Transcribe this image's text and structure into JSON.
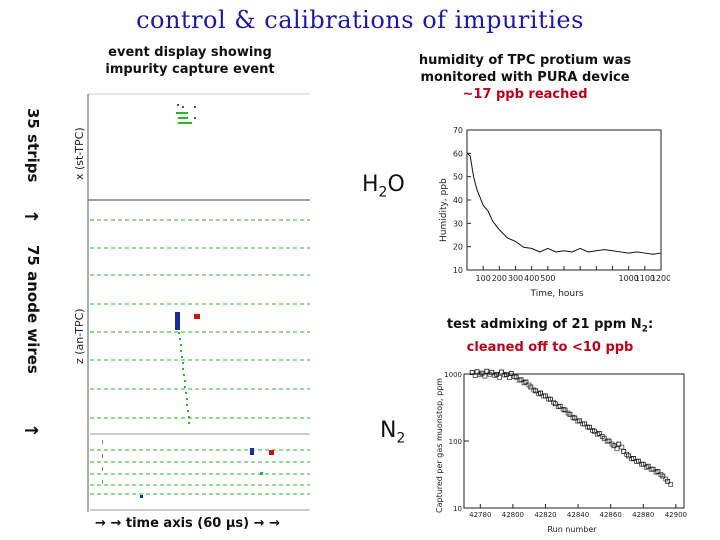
{
  "title": "control & calibrations of impurities",
  "left_panel": {
    "caption_line1": "event display showing",
    "caption_line2": "impurity capture event",
    "strips_label": "35 strips",
    "anode_label": "75 anode wires",
    "arrow_glyph": "→",
    "upper_axis_label": "x (st-TPC)",
    "lower_axis_label": "z (an-TPC)",
    "time_axis_label": "time axis (60 μs)"
  },
  "humidity_panel": {
    "caption_line1": "humidity of TPC protium was",
    "caption_line2": "monitored with PURA device",
    "caption_line3": "~17 ppb reached",
    "molecule_prefix": "H",
    "molecule_sub": "2",
    "molecule_suffix": "O",
    "chart_data": {
      "type": "line",
      "ylabel": "Humidity, ppb",
      "xlabel": "Time, hours",
      "xlim": [
        0,
        1200
      ],
      "ylim": [
        10,
        70
      ],
      "xticks": [
        "100",
        "200",
        "300",
        "400",
        "500",
        "600",
        "700",
        "800",
        "900",
        "1000",
        "1100",
        "1200"
      ],
      "xticks_shown": [
        "100",
        "200",
        "300",
        "400",
        "500",
        "1000",
        "1100",
        "1200"
      ],
      "yticks": [
        "10",
        "20",
        "30",
        "40",
        "50",
        "60",
        "70"
      ],
      "series": [
        {
          "x": [
            0,
            20,
            40,
            60,
            80,
            100,
            130,
            160,
            200,
            250,
            300,
            350,
            400,
            450,
            500,
            550,
            600,
            650,
            700,
            750,
            800,
            850,
            900,
            950,
            1000,
            1050,
            1100,
            1150,
            1200
          ],
          "y": [
            60,
            59,
            50,
            45,
            41,
            38,
            35,
            31,
            27,
            24,
            22,
            20,
            19,
            18,
            19,
            18,
            18,
            18,
            19,
            18,
            18,
            19,
            18,
            18,
            17,
            18,
            17,
            17,
            17
          ]
        }
      ]
    }
  },
  "n2_panel": {
    "caption_line1_pre": "test admixing of 21 ppm N",
    "caption_line1_sub": "2",
    "caption_line1_post": ":",
    "caption_line2": "cleaned off to <10 ppb",
    "molecule_prefix": "N",
    "molecule_sub": "2",
    "chart_data": {
      "type": "scatter",
      "ylabel": "Captured per gas muonstop, ppm",
      "xlabel": "Run number",
      "log_y": true,
      "ylim": [
        10,
        1000
      ],
      "yticks": [
        "10",
        "100",
        "1000"
      ],
      "xticks": [
        "42780",
        "42800",
        "42820",
        "42840",
        "42860",
        "42880",
        "42900"
      ],
      "xlim": [
        42770,
        42905
      ],
      "series": [
        {
          "x": [
            42775,
            42778,
            42781,
            42784,
            42787,
            42790,
            42793,
            42796,
            42799,
            42802,
            42805,
            42808,
            42811,
            42814,
            42817,
            42820,
            42823,
            42826,
            42829,
            42832,
            42835,
            42838,
            42841,
            42844,
            42847,
            42850,
            42853,
            42856,
            42859,
            42862,
            42865,
            42868,
            42871,
            42874,
            42877,
            42880,
            42883,
            42886,
            42889,
            42892,
            42895
          ],
          "y": [
            1050,
            1080,
            1030,
            1100,
            1060,
            990,
            1070,
            980,
            1020,
            900,
            820,
            760,
            640,
            560,
            520,
            470,
            420,
            360,
            330,
            290,
            250,
            220,
            200,
            180,
            160,
            140,
            130,
            110,
            100,
            85,
            90,
            70,
            60,
            55,
            50,
            45,
            42,
            38,
            35,
            30,
            25
          ]
        }
      ]
    }
  },
  "colors": {
    "title": "#1a1aa6",
    "red_text": "#c0001a",
    "track_green": "#2bb52b",
    "track_blue": "#1a2aa0",
    "hit_red": "#cc1111"
  }
}
